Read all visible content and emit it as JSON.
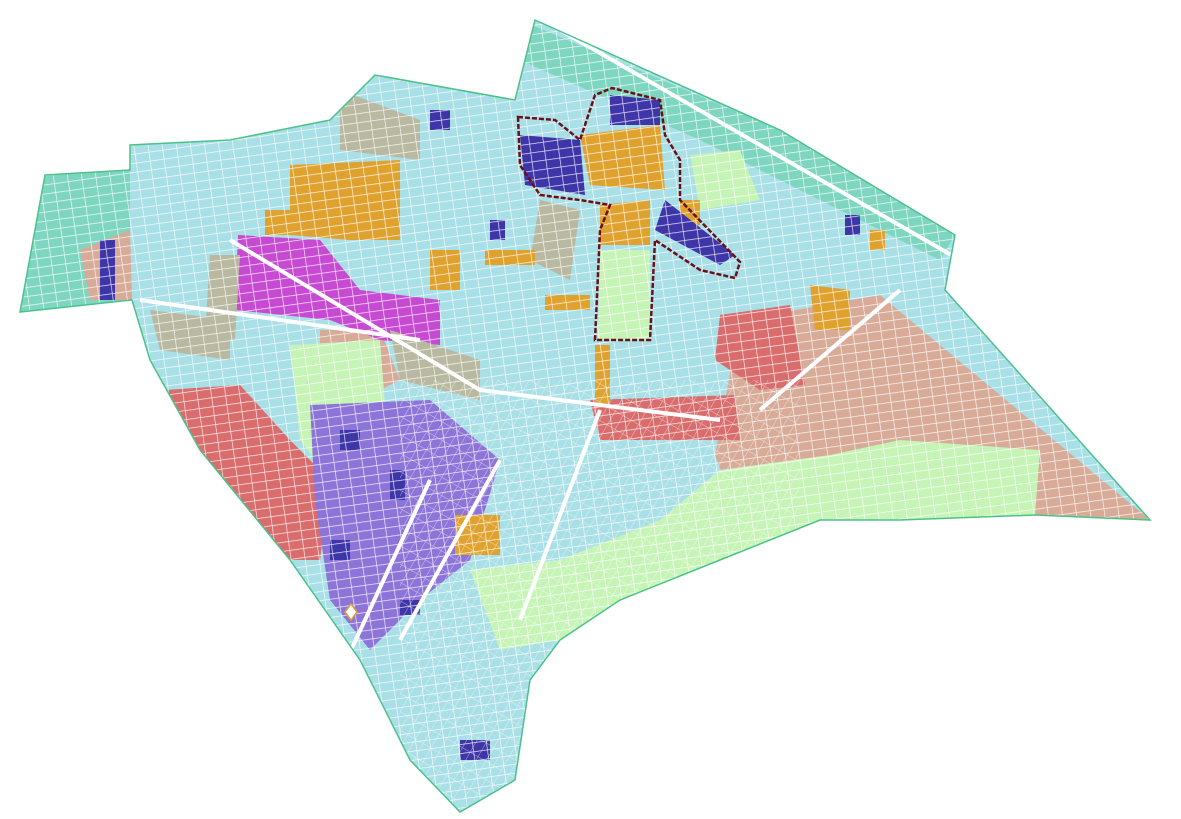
{
  "map": {
    "colors": {
      "background": "#ffffff",
      "base_residential": "#a9dfe6",
      "boundary": "#4cc28a",
      "informal_settlement": "#d8ab98",
      "green_space": "#c6f4b6",
      "red_zone": "#d96c6c",
      "purple_zone": "#8d74d8",
      "dark_blue_blocks": "#3d35a8",
      "magenta_zone": "#c64bd2",
      "orange_facilities": "#e0a22f",
      "gray_zone": "#b9b9a2",
      "teal_zone": "#7fd6c0",
      "highlight_outline": "#6b0f1a",
      "streets": "#ffffff"
    }
  }
}
